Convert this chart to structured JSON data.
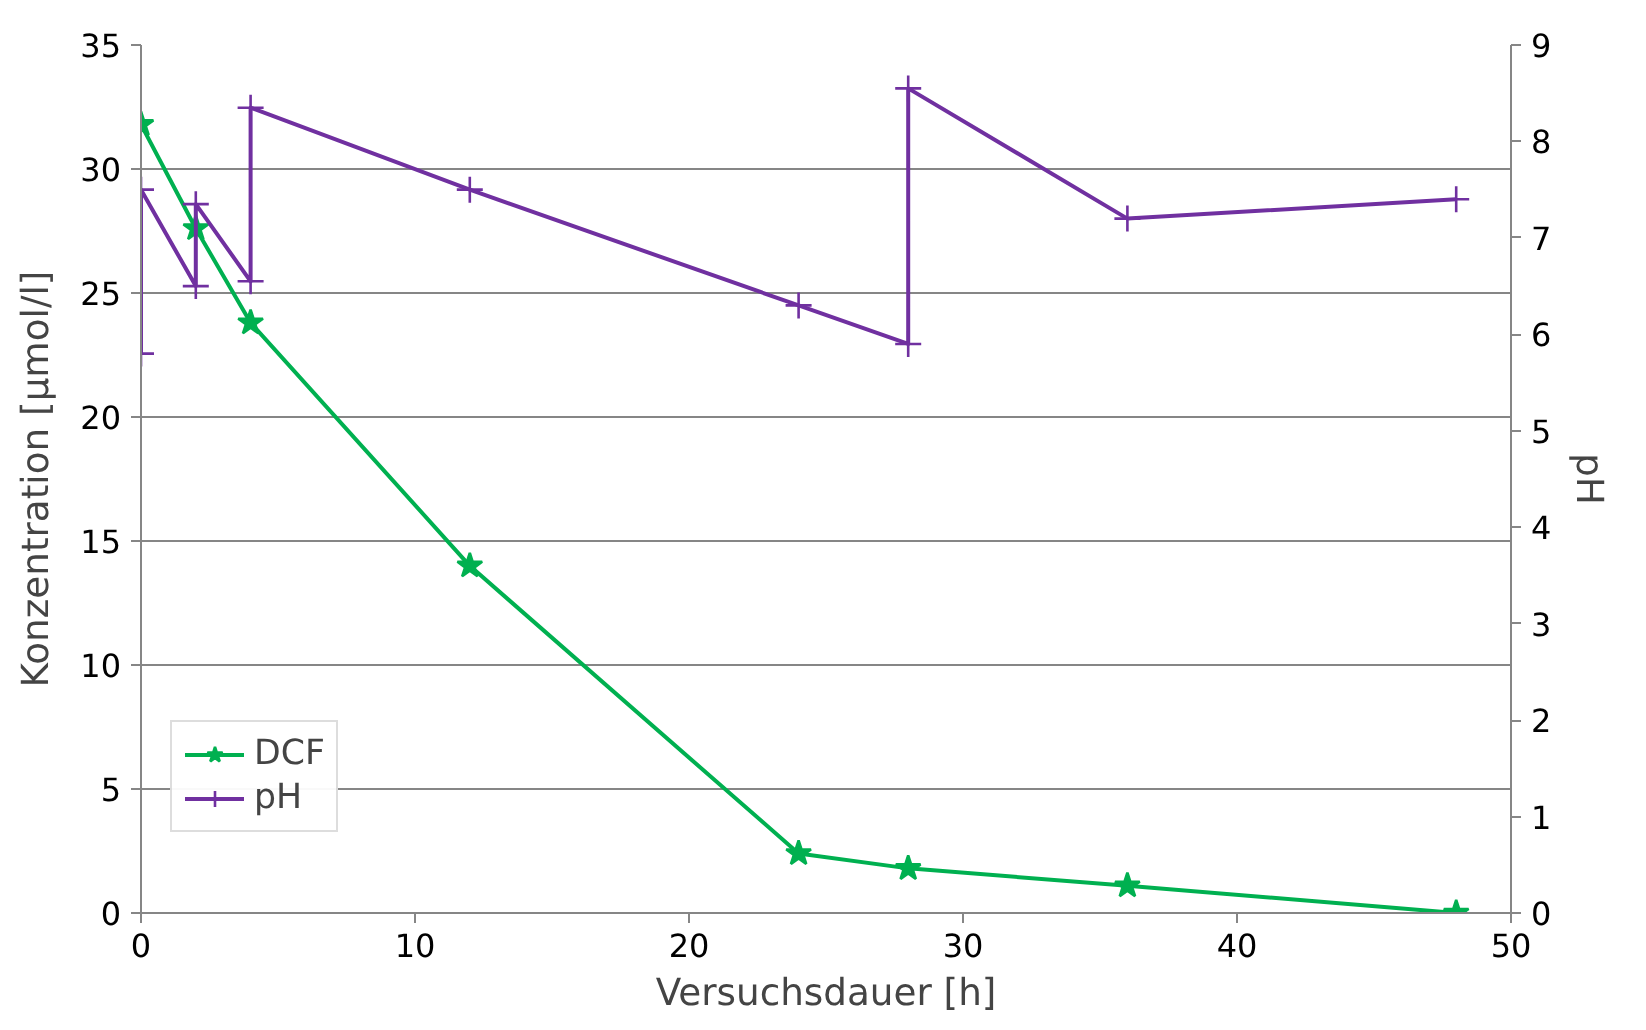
{
  "chart_data": {
    "type": "line",
    "xlabel": "Versuchsdauer [h]",
    "ylabel": "Konzentration [µmol/l]",
    "y2label": "pH",
    "xlim": [
      0,
      50
    ],
    "xticks": [
      0,
      10,
      20,
      30,
      40,
      50
    ],
    "ylim": [
      0,
      35
    ],
    "yticks": [
      0,
      5,
      10,
      15,
      20,
      25,
      30,
      35
    ],
    "y2lim": [
      0,
      9
    ],
    "y2ticks": [
      0,
      1,
      2,
      3,
      4,
      5,
      6,
      7,
      8,
      9
    ],
    "grid": "y",
    "legend": "bottom left",
    "series": [
      {
        "name": "DCF",
        "color": "#00b050",
        "marker": "star",
        "x": [
          0,
          2,
          4,
          12,
          24,
          28,
          36,
          48
        ],
        "values": [
          31.8,
          27.6,
          23.8,
          14.0,
          2.4,
          1.8,
          1.1,
          0
        ]
      },
      {
        "name": "pH",
        "color": "#7030a0",
        "marker": "cross",
        "axis": "y2",
        "x": [
          0,
          0,
          2,
          2,
          4,
          4,
          12,
          24,
          28,
          28,
          36,
          48
        ],
        "values": [
          5.8,
          7.5,
          6.5,
          7.35,
          6.55,
          8.35,
          7.5,
          6.3,
          5.9,
          8.55,
          7.2,
          7.4
        ]
      }
    ]
  }
}
